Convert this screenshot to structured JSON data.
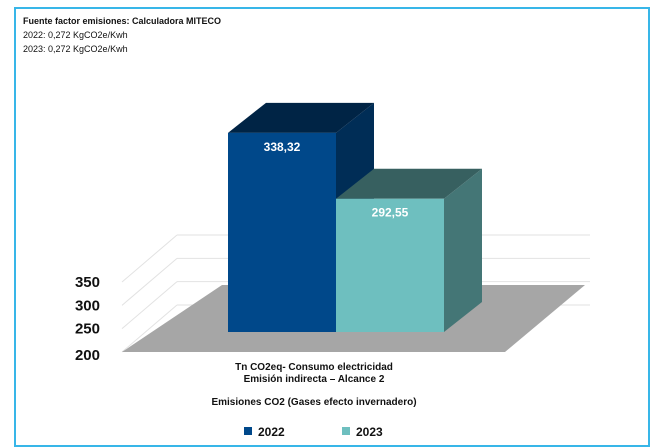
{
  "notes": [
    "Fuente factor emisiones:  Calculadora MITECO",
    "2022: 0,272 KgCO2e/Kwh",
    "2023: 0,272 KgCO2e/Kwh"
  ],
  "chart_data": {
    "type": "bar",
    "style": "3d-column",
    "categories": [
      "Tn CO2eq- Consumo electricidad\nEmisión indirecta – Alcance 2"
    ],
    "category_lines": [
      "Tn CO2eq- Consumo electricidad",
      "Emisión indirecta – Alcance 2"
    ],
    "xlabel": "Emisiones CO2 (Gases efecto invernadero)",
    "ylim": [
      200,
      350
    ],
    "yticks": [
      "200",
      "250",
      "300",
      "350"
    ],
    "grid": true,
    "legend_position": "bottom",
    "series": [
      {
        "name": "2022",
        "values": [
          338.32
        ],
        "label": "338,32",
        "color": "#00488a"
      },
      {
        "name": "2023",
        "values": [
          292.55
        ],
        "label": "292,55",
        "color": "#6ebfbf"
      }
    ]
  }
}
